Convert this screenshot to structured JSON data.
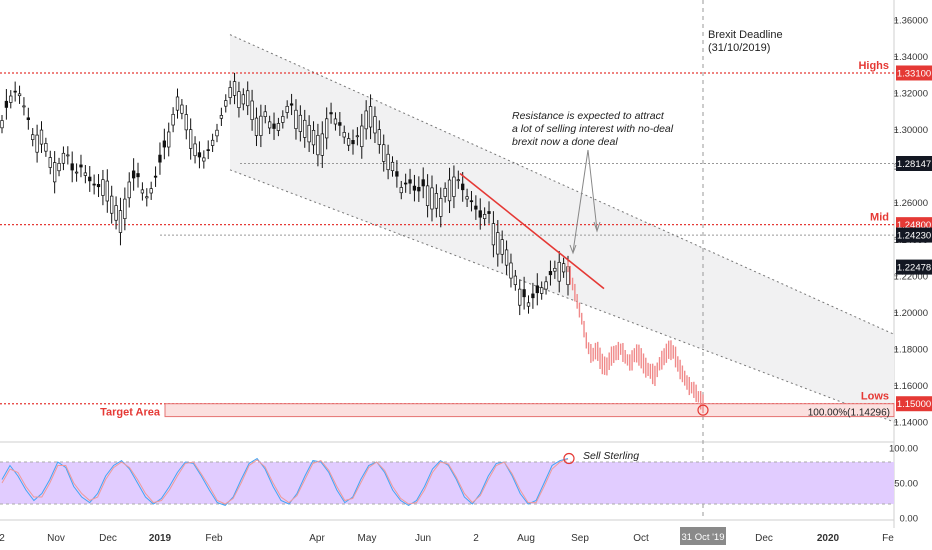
{
  "chart_data": [
    {
      "type": "candlestick",
      "title": "",
      "xlabel": "",
      "ylabel": "",
      "ylim": [
        1.13,
        1.37
      ],
      "grid": false,
      "price_axis_ticks": [
        "1.36000",
        "1.34000",
        "1.32000",
        "1.30000",
        "1.28000",
        "1.26000",
        "1.24000",
        "1.22000",
        "1.20000",
        "1.18000",
        "1.16000",
        "1.14000"
      ],
      "price_axis_tick_values": [
        1.36,
        1.34,
        1.32,
        1.3,
        1.28,
        1.26,
        1.24,
        1.22,
        1.2,
        1.18,
        1.16,
        1.14
      ],
      "time_axis_ticks": [
        "2",
        "Nov",
        "Dec",
        "2019",
        "Feb",
        "Apr",
        "May",
        "Jun",
        "2",
        "Aug",
        "Sep",
        "Oct",
        "Nov",
        "Dec",
        "2020",
        "Fe"
      ],
      "time_axis_highlight": "31 Oct '19",
      "price_tags": [
        {
          "label": "1.33100",
          "value": 1.331,
          "color": "#e53935"
        },
        {
          "label": "1.28147",
          "value": 1.28147,
          "color": "#131722"
        },
        {
          "label": "1.24800",
          "value": 1.248,
          "color": "#e53935"
        },
        {
          "label": "1.24230",
          "value": 1.2423,
          "color": "#131722"
        },
        {
          "label": "1.22478",
          "value": 1.22478,
          "color": "#131722"
        },
        {
          "label": "1.15000",
          "value": 1.15,
          "color": "#e53935"
        }
      ],
      "horizontal_levels": [
        {
          "label": "Highs",
          "value": 1.331
        },
        {
          "label": "Mid",
          "value": 1.248
        },
        {
          "label": "Lows",
          "value": 1.15
        }
      ],
      "series": [
        {
          "kind": "historical_close_trace",
          "values": [
            1.305,
            1.318,
            1.322,
            1.31,
            1.295,
            1.3,
            1.285,
            1.28,
            1.29,
            1.275,
            1.28,
            1.272,
            1.268,
            1.275,
            1.26,
            1.255,
            1.272,
            1.275,
            1.262,
            1.27,
            1.285,
            1.3,
            1.318,
            1.31,
            1.295,
            1.282,
            1.29,
            1.3,
            1.315,
            1.328,
            1.318,
            1.322,
            1.305,
            1.31,
            1.3,
            1.305,
            1.315,
            1.31,
            1.305,
            1.3,
            1.295,
            1.31,
            1.305,
            1.298,
            1.292,
            1.3,
            1.315,
            1.305,
            1.29,
            1.282,
            1.268,
            1.272,
            1.265,
            1.27,
            1.268,
            1.262,
            1.272,
            1.275,
            1.265,
            1.26,
            1.252,
            1.255,
            1.245,
            1.238,
            1.225,
            1.212,
            1.205,
            1.21,
            1.215,
            1.222,
            1.228,
            1.225
          ]
        },
        {
          "kind": "projected_path",
          "values": [
            1.225,
            1.215,
            1.205,
            1.195,
            1.182,
            1.176,
            1.18,
            1.172,
            1.17,
            1.176,
            1.178,
            1.18,
            1.175,
            1.172,
            1.178,
            1.176,
            1.17,
            1.168,
            1.165,
            1.172,
            1.176,
            1.18,
            1.178,
            1.17,
            1.165,
            1.16,
            1.158,
            1.154,
            1.15
          ]
        }
      ],
      "trend_channel": {
        "upper_start": 1.352,
        "upper_end": 1.188,
        "lower_start": 1.278,
        "lower_end": 1.14
      },
      "resistance_line": {
        "start": 1.276,
        "end": 1.213
      },
      "target_area": {
        "label": "Target Area",
        "top": 1.15,
        "bottom": 1.14296,
        "fib_label": "100.00%(1.14296)"
      },
      "annotations": [
        {
          "label": "Brexit Deadline",
          "sublabel": "(31/10/2019)"
        },
        {
          "label": "Resistance is expected to attract",
          "line2": "a lot of selling interest with no-deal",
          "line3": "brexit now a done deal"
        }
      ]
    },
    {
      "type": "line",
      "title": "",
      "ylim": [
        0,
        100
      ],
      "y_ticks": [
        "100.00",
        "50.00",
        "0.00"
      ],
      "y_tick_values": [
        100,
        50,
        0
      ],
      "band": [
        20,
        80
      ],
      "series": [
        {
          "color": "#42a5f5",
          "values": [
            55,
            75,
            60,
            40,
            25,
            35,
            55,
            80,
            72,
            45,
            30,
            22,
            35,
            60,
            75,
            82,
            70,
            50,
            30,
            20,
            28,
            45,
            65,
            80,
            78,
            60,
            40,
            22,
            18,
            30,
            55,
            78,
            85,
            70,
            45,
            25,
            20,
            35,
            60,
            82,
            80,
            65,
            40,
            22,
            30,
            55,
            75,
            80,
            65,
            40,
            25,
            18,
            25,
            45,
            70,
            82,
            75,
            55,
            30,
            20,
            35,
            60,
            78,
            80,
            60,
            35,
            20,
            25,
            50,
            75,
            82,
            85
          ]
        },
        {
          "color": "#ef9a9a",
          "values": [
            50,
            70,
            65,
            45,
            30,
            30,
            50,
            75,
            75,
            50,
            35,
            25,
            30,
            55,
            72,
            80,
            72,
            55,
            35,
            22,
            25,
            40,
            60,
            78,
            80,
            63,
            45,
            25,
            20,
            28,
            50,
            75,
            83,
            73,
            50,
            30,
            22,
            32,
            55,
            78,
            82,
            68,
            45,
            25,
            28,
            50,
            72,
            80,
            68,
            45,
            28,
            20,
            22,
            40,
            65,
            80,
            77,
            58,
            35,
            22,
            32,
            55,
            75,
            80,
            63,
            40,
            22,
            22,
            45,
            70,
            80,
            84
          ]
        }
      ],
      "annotations": [
        {
          "label": "Sell Sterling"
        }
      ]
    }
  ]
}
